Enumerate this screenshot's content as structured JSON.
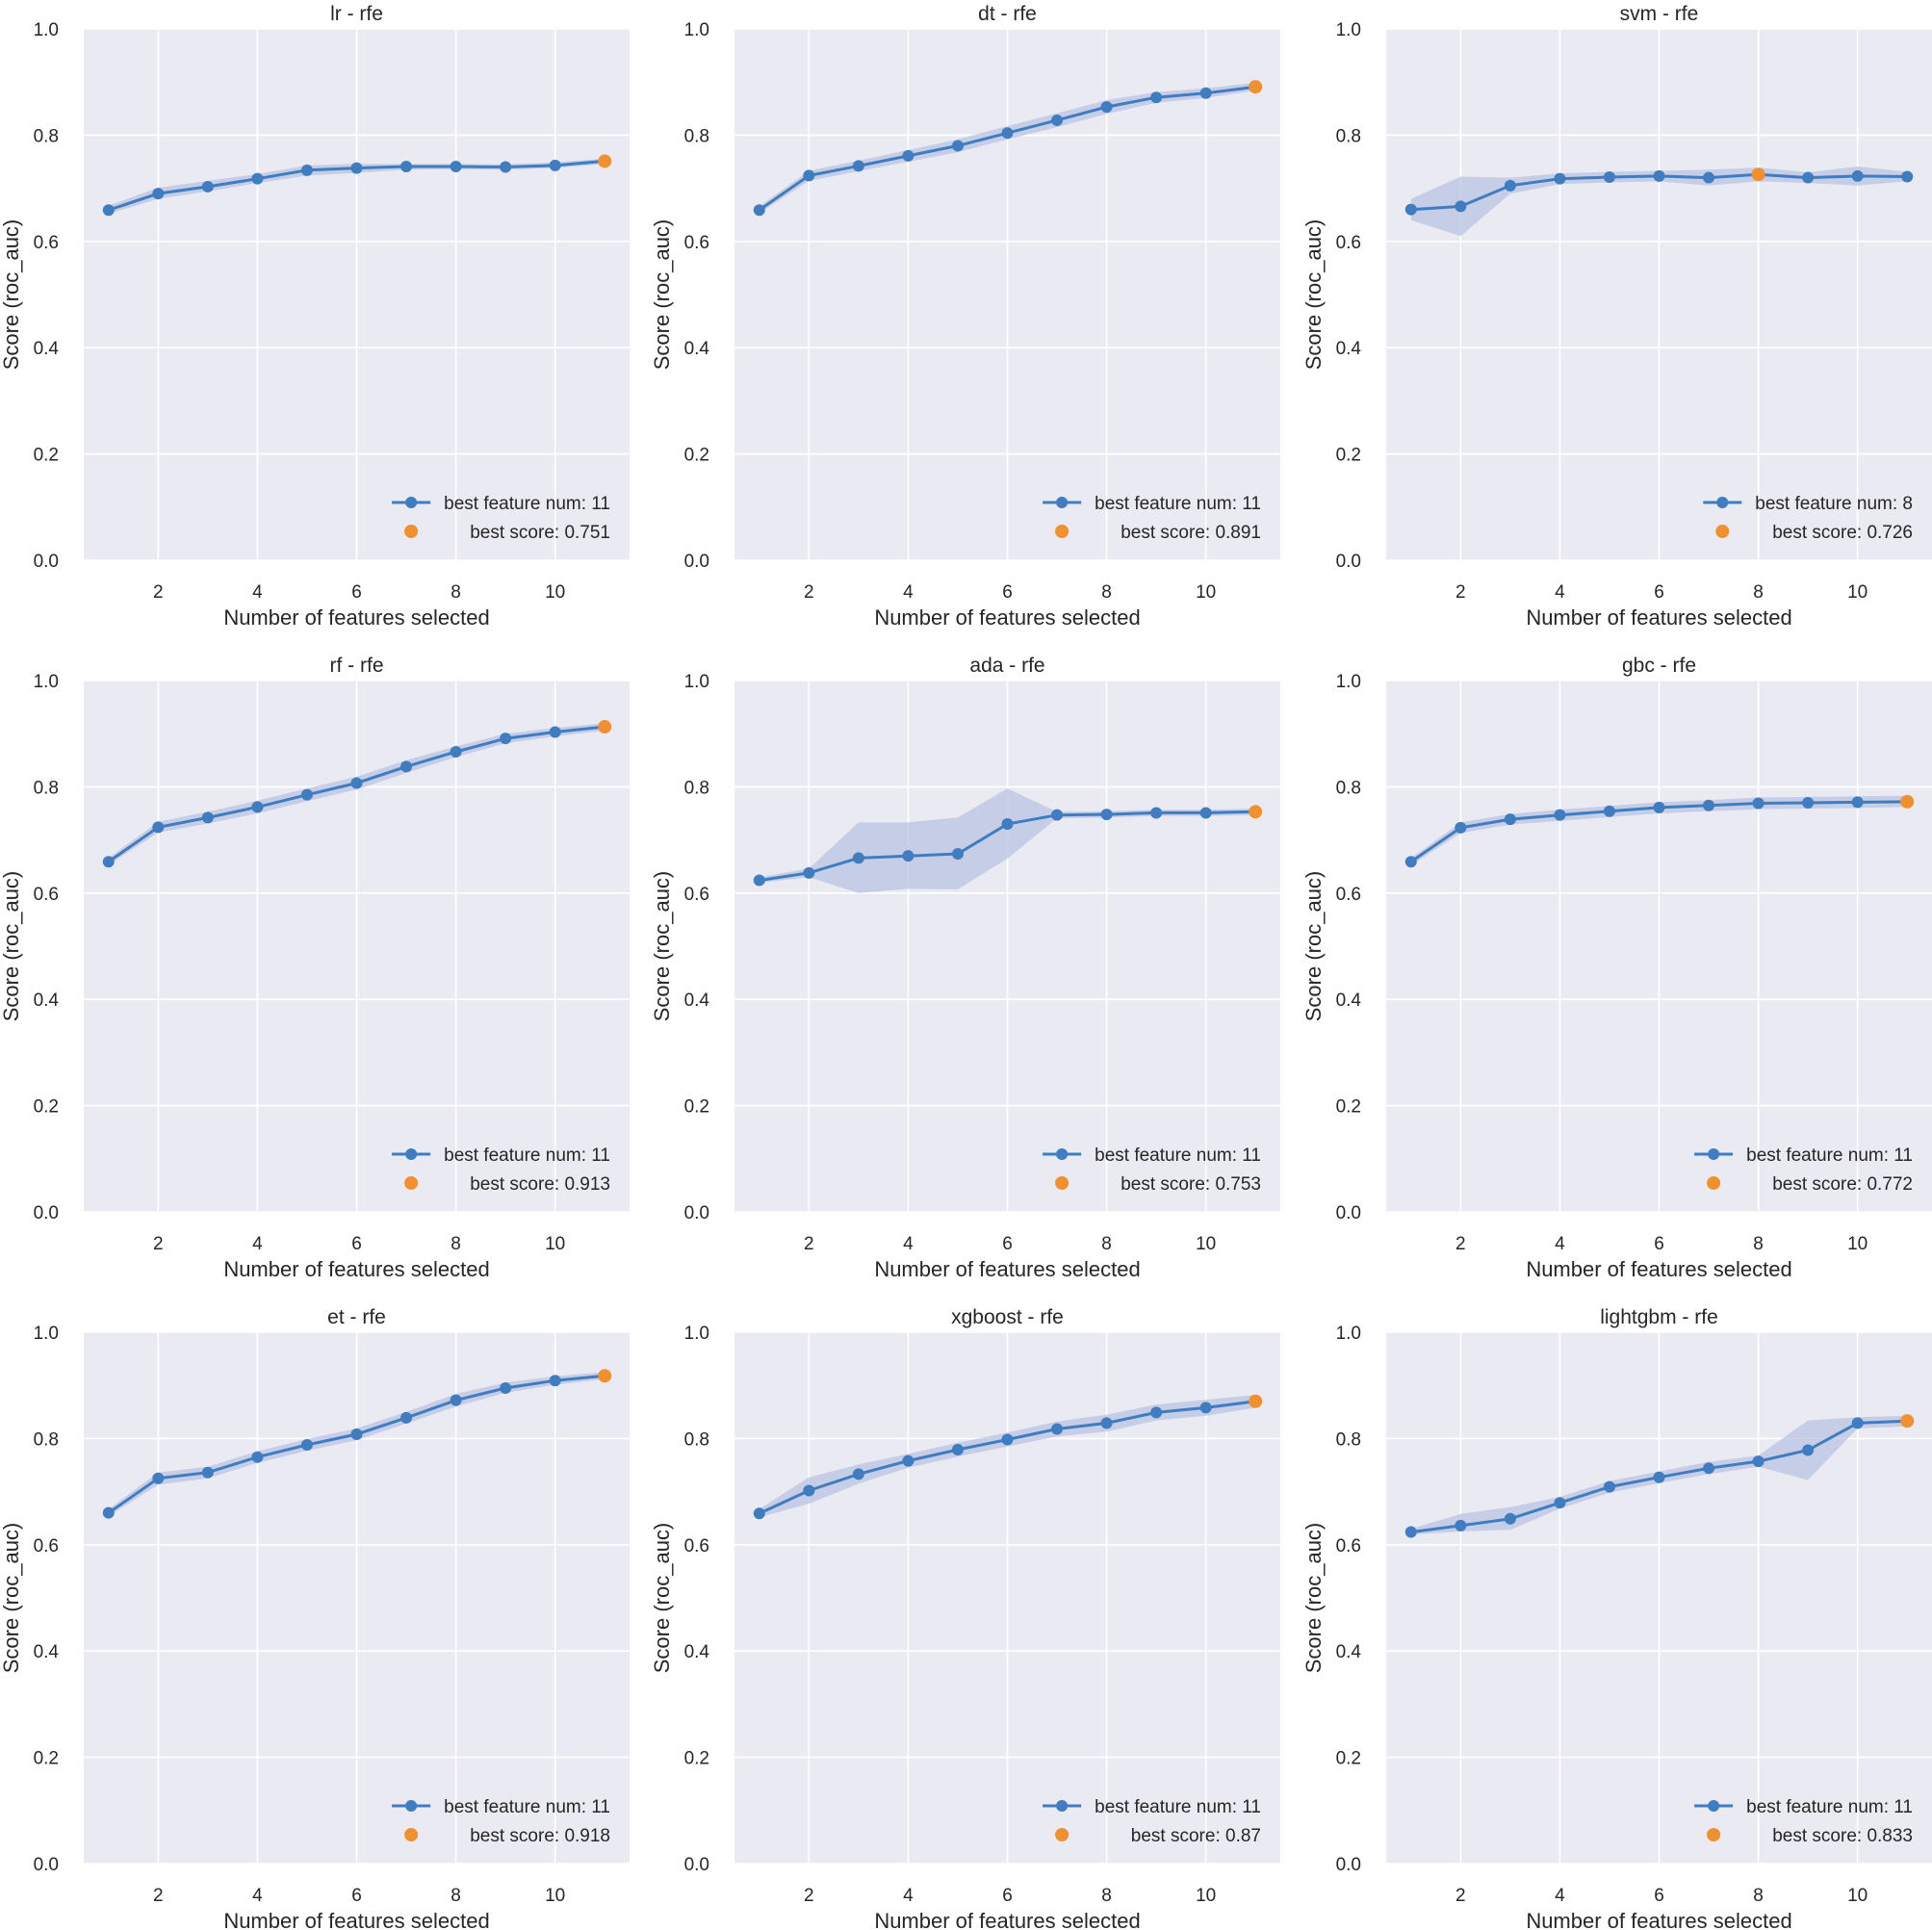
{
  "colors": {
    "panel_bg": "#eaeaf2",
    "grid": "#ffffff",
    "line": "#3f7dc0",
    "band": "#b9c3e2",
    "best": "#f0902f",
    "text": "#262626"
  },
  "chart_data": [
    {
      "type": "line",
      "title": "lr - rfe",
      "xlabel": "Number of features selected",
      "ylabel": "Score (roc_auc)",
      "x": [
        1,
        2,
        3,
        4,
        5,
        6,
        7,
        8,
        9,
        10,
        11
      ],
      "y": [
        0.659,
        0.69,
        0.703,
        0.718,
        0.734,
        0.738,
        0.741,
        0.741,
        0.74,
        0.743,
        0.751
      ],
      "y_lower": [
        0.652,
        0.68,
        0.694,
        0.71,
        0.724,
        0.729,
        0.735,
        0.736,
        0.735,
        0.738,
        0.746
      ],
      "y_upper": [
        0.667,
        0.701,
        0.714,
        0.727,
        0.743,
        0.746,
        0.746,
        0.746,
        0.745,
        0.749,
        0.756
      ],
      "best_x": 11,
      "best_y": 0.751,
      "ylim": [
        0.0,
        1.0
      ],
      "xlim": [
        0.5,
        11.5
      ],
      "yticks": [
        "0.0",
        "0.2",
        "0.4",
        "0.6",
        "0.8",
        "1.0"
      ],
      "xticks": [
        "2",
        "4",
        "6",
        "8",
        "10"
      ],
      "legend": [
        "best feature num: 11",
        "best score: 0.751"
      ],
      "legend_position": "lower-right"
    },
    {
      "type": "line",
      "title": "dt - rfe",
      "xlabel": "Number of features selected",
      "ylabel": "Score (roc_auc)",
      "x": [
        1,
        2,
        3,
        4,
        5,
        6,
        7,
        8,
        9,
        10,
        11
      ],
      "y": [
        0.659,
        0.724,
        0.742,
        0.761,
        0.78,
        0.804,
        0.828,
        0.853,
        0.871,
        0.879,
        0.891
      ],
      "y_lower": [
        0.653,
        0.714,
        0.732,
        0.75,
        0.768,
        0.792,
        0.815,
        0.84,
        0.861,
        0.87,
        0.884
      ],
      "y_upper": [
        0.666,
        0.733,
        0.752,
        0.772,
        0.792,
        0.817,
        0.841,
        0.866,
        0.881,
        0.888,
        0.899
      ],
      "best_x": 11,
      "best_y": 0.891,
      "ylim": [
        0.0,
        1.0
      ],
      "xlim": [
        0.5,
        11.5
      ],
      "yticks": [
        "0.0",
        "0.2",
        "0.4",
        "0.6",
        "0.8",
        "1.0"
      ],
      "xticks": [
        "2",
        "4",
        "6",
        "8",
        "10"
      ],
      "legend": [
        "best feature num: 11",
        "best score: 0.891"
      ],
      "legend_position": "lower-right"
    },
    {
      "type": "line",
      "title": "svm - rfe",
      "xlabel": "Number of features selected",
      "ylabel": "Score (roc_auc)",
      "x": [
        1,
        2,
        3,
        4,
        5,
        6,
        7,
        8,
        9,
        10,
        11
      ],
      "y": [
        0.66,
        0.666,
        0.705,
        0.718,
        0.721,
        0.723,
        0.72,
        0.726,
        0.72,
        0.723,
        0.722
      ],
      "y_lower": [
        0.64,
        0.61,
        0.69,
        0.708,
        0.711,
        0.713,
        0.705,
        0.713,
        0.71,
        0.705,
        0.713
      ],
      "y_upper": [
        0.68,
        0.722,
        0.72,
        0.728,
        0.731,
        0.733,
        0.735,
        0.739,
        0.73,
        0.741,
        0.731
      ],
      "best_x": 8,
      "best_y": 0.726,
      "ylim": [
        0.0,
        1.0
      ],
      "xlim": [
        0.5,
        11.5
      ],
      "yticks": [
        "0.0",
        "0.2",
        "0.4",
        "0.6",
        "0.8",
        "1.0"
      ],
      "xticks": [
        "2",
        "4",
        "6",
        "8",
        "10"
      ],
      "legend": [
        "best feature num: 8",
        "best score: 0.726"
      ],
      "legend_position": "lower-right"
    },
    {
      "type": "line",
      "title": "rf - rfe",
      "xlabel": "Number of features selected",
      "ylabel": "Score (roc_auc)",
      "x": [
        1,
        2,
        3,
        4,
        5,
        6,
        7,
        8,
        9,
        10,
        11
      ],
      "y": [
        0.659,
        0.724,
        0.742,
        0.762,
        0.785,
        0.807,
        0.838,
        0.866,
        0.891,
        0.903,
        0.913
      ],
      "y_lower": [
        0.653,
        0.714,
        0.731,
        0.75,
        0.773,
        0.795,
        0.826,
        0.856,
        0.882,
        0.895,
        0.906
      ],
      "y_upper": [
        0.666,
        0.734,
        0.753,
        0.774,
        0.797,
        0.819,
        0.85,
        0.876,
        0.9,
        0.911,
        0.92
      ],
      "best_x": 11,
      "best_y": 0.913,
      "ylim": [
        0.0,
        1.0
      ],
      "xlim": [
        0.5,
        11.5
      ],
      "yticks": [
        "0.0",
        "0.2",
        "0.4",
        "0.6",
        "0.8",
        "1.0"
      ],
      "xticks": [
        "2",
        "4",
        "6",
        "8",
        "10"
      ],
      "legend": [
        "best feature num: 11",
        "best score: 0.913"
      ],
      "legend_position": "lower-right"
    },
    {
      "type": "line",
      "title": "ada - rfe",
      "xlabel": "Number of features selected",
      "ylabel": "Score (roc_auc)",
      "x": [
        1,
        2,
        3,
        4,
        5,
        6,
        7,
        8,
        9,
        10,
        11
      ],
      "y": [
        0.624,
        0.638,
        0.666,
        0.67,
        0.674,
        0.73,
        0.747,
        0.748,
        0.751,
        0.751,
        0.753
      ],
      "y_lower": [
        0.619,
        0.63,
        0.6,
        0.608,
        0.607,
        0.665,
        0.741,
        0.742,
        0.745,
        0.745,
        0.747
      ],
      "y_upper": [
        0.63,
        0.646,
        0.733,
        0.733,
        0.742,
        0.797,
        0.753,
        0.754,
        0.757,
        0.757,
        0.759
      ],
      "best_x": 11,
      "best_y": 0.753,
      "ylim": [
        0.0,
        1.0
      ],
      "xlim": [
        0.5,
        11.5
      ],
      "yticks": [
        "0.0",
        "0.2",
        "0.4",
        "0.6",
        "0.8",
        "1.0"
      ],
      "xticks": [
        "2",
        "4",
        "6",
        "8",
        "10"
      ],
      "legend": [
        "best feature num: 11",
        "best score: 0.753"
      ],
      "legend_position": "lower-right"
    },
    {
      "type": "line",
      "title": "gbc - rfe",
      "xlabel": "Number of features selected",
      "ylabel": "Score (roc_auc)",
      "x": [
        1,
        2,
        3,
        4,
        5,
        6,
        7,
        8,
        9,
        10,
        11
      ],
      "y": [
        0.659,
        0.723,
        0.739,
        0.747,
        0.754,
        0.761,
        0.765,
        0.769,
        0.77,
        0.771,
        0.772
      ],
      "y_lower": [
        0.652,
        0.713,
        0.729,
        0.736,
        0.743,
        0.75,
        0.754,
        0.758,
        0.759,
        0.76,
        0.762
      ],
      "y_upper": [
        0.666,
        0.733,
        0.749,
        0.757,
        0.764,
        0.771,
        0.775,
        0.78,
        0.781,
        0.782,
        0.783
      ],
      "best_x": 11,
      "best_y": 0.772,
      "ylim": [
        0.0,
        1.0
      ],
      "xlim": [
        0.5,
        11.5
      ],
      "yticks": [
        "0.0",
        "0.2",
        "0.4",
        "0.6",
        "0.8",
        "1.0"
      ],
      "xticks": [
        "2",
        "4",
        "6",
        "8",
        "10"
      ],
      "legend": [
        "best feature num: 11",
        "best score: 0.772"
      ],
      "legend_position": "lower-right"
    },
    {
      "type": "line",
      "title": "et - rfe",
      "xlabel": "Number of features selected",
      "ylabel": "Score (roc_auc)",
      "x": [
        1,
        2,
        3,
        4,
        5,
        6,
        7,
        8,
        9,
        10,
        11
      ],
      "y": [
        0.66,
        0.725,
        0.736,
        0.765,
        0.788,
        0.808,
        0.839,
        0.872,
        0.895,
        0.909,
        0.918
      ],
      "y_lower": [
        0.654,
        0.713,
        0.725,
        0.754,
        0.777,
        0.797,
        0.828,
        0.86,
        0.886,
        0.901,
        0.912
      ],
      "y_upper": [
        0.667,
        0.736,
        0.747,
        0.776,
        0.799,
        0.819,
        0.85,
        0.884,
        0.905,
        0.917,
        0.925
      ],
      "best_x": 11,
      "best_y": 0.918,
      "ylim": [
        0.0,
        1.0
      ],
      "xlim": [
        0.5,
        11.5
      ],
      "yticks": [
        "0.0",
        "0.2",
        "0.4",
        "0.6",
        "0.8",
        "1.0"
      ],
      "xticks": [
        "2",
        "4",
        "6",
        "8",
        "10"
      ],
      "legend": [
        "best feature num: 11",
        "best score: 0.918"
      ],
      "legend_position": "lower-right"
    },
    {
      "type": "line",
      "title": "xgboost - rfe",
      "xlabel": "Number of features selected",
      "ylabel": "Score (roc_auc)",
      "x": [
        1,
        2,
        3,
        4,
        5,
        6,
        7,
        8,
        9,
        10,
        11
      ],
      "y": [
        0.659,
        0.702,
        0.733,
        0.758,
        0.779,
        0.798,
        0.818,
        0.829,
        0.849,
        0.858,
        0.87
      ],
      "y_lower": [
        0.652,
        0.677,
        0.715,
        0.745,
        0.766,
        0.785,
        0.804,
        0.813,
        0.834,
        0.843,
        0.858
      ],
      "y_upper": [
        0.667,
        0.727,
        0.751,
        0.771,
        0.792,
        0.811,
        0.832,
        0.845,
        0.864,
        0.873,
        0.882
      ],
      "best_x": 11,
      "best_y": 0.87,
      "ylim": [
        0.0,
        1.0
      ],
      "xlim": [
        0.5,
        11.5
      ],
      "yticks": [
        "0.0",
        "0.2",
        "0.4",
        "0.6",
        "0.8",
        "1.0"
      ],
      "xticks": [
        "2",
        "4",
        "6",
        "8",
        "10"
      ],
      "legend": [
        "best feature num: 11",
        "best score: 0.87"
      ],
      "legend_position": "lower-right"
    },
    {
      "type": "line",
      "title": "lightgbm - rfe",
      "xlabel": "Number of features selected",
      "ylabel": "Score (roc_auc)",
      "x": [
        1,
        2,
        3,
        4,
        5,
        6,
        7,
        8,
        9,
        10,
        11
      ],
      "y": [
        0.624,
        0.636,
        0.649,
        0.679,
        0.709,
        0.727,
        0.744,
        0.757,
        0.778,
        0.829,
        0.833
      ],
      "y_lower": [
        0.619,
        0.625,
        0.628,
        0.668,
        0.698,
        0.716,
        0.733,
        0.747,
        0.722,
        0.819,
        0.823
      ],
      "y_upper": [
        0.63,
        0.658,
        0.671,
        0.69,
        0.72,
        0.738,
        0.756,
        0.768,
        0.834,
        0.84,
        0.843
      ],
      "best_x": 11,
      "best_y": 0.833,
      "ylim": [
        0.0,
        1.0
      ],
      "xlim": [
        0.5,
        11.5
      ],
      "yticks": [
        "0.0",
        "0.2",
        "0.4",
        "0.6",
        "0.8",
        "1.0"
      ],
      "xticks": [
        "2",
        "4",
        "6",
        "8",
        "10"
      ],
      "legend": [
        "best feature num: 11",
        "best score: 0.833"
      ],
      "legend_position": "lower-right"
    }
  ]
}
